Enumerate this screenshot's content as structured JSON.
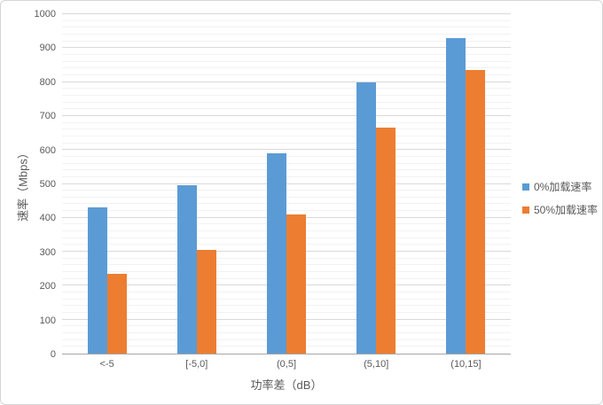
{
  "chart_data": {
    "type": "bar",
    "title": "",
    "categories": [
      "<-5",
      "[-5,0]",
      "(0,5]",
      "(5,10]",
      "(10,15]"
    ],
    "series": [
      {
        "name": "0%加载速率",
        "color": "#5B9BD5",
        "values": [
          430,
          495,
          590,
          800,
          930
        ]
      },
      {
        "name": "50%加载速率",
        "color": "#ED7D31",
        "values": [
          235,
          305,
          410,
          665,
          835
        ]
      }
    ],
    "xlabel": "功率差（dB）",
    "ylabel": "速率（Mbps）",
    "ylim": [
      0,
      1000
    ],
    "y_major_unit": 100,
    "y_minor_unit": 20,
    "y_tick_labels": [
      "0",
      "100",
      "200",
      "300",
      "400",
      "500",
      "600",
      "700",
      "800",
      "900",
      "1000"
    ],
    "grid": true,
    "legend_position": "right",
    "colors": {
      "axis_line": "#A6A6A6",
      "major_gridline": "#D9D9D9",
      "minor_gridline": "#F2F2F2",
      "text": "#595959"
    }
  }
}
